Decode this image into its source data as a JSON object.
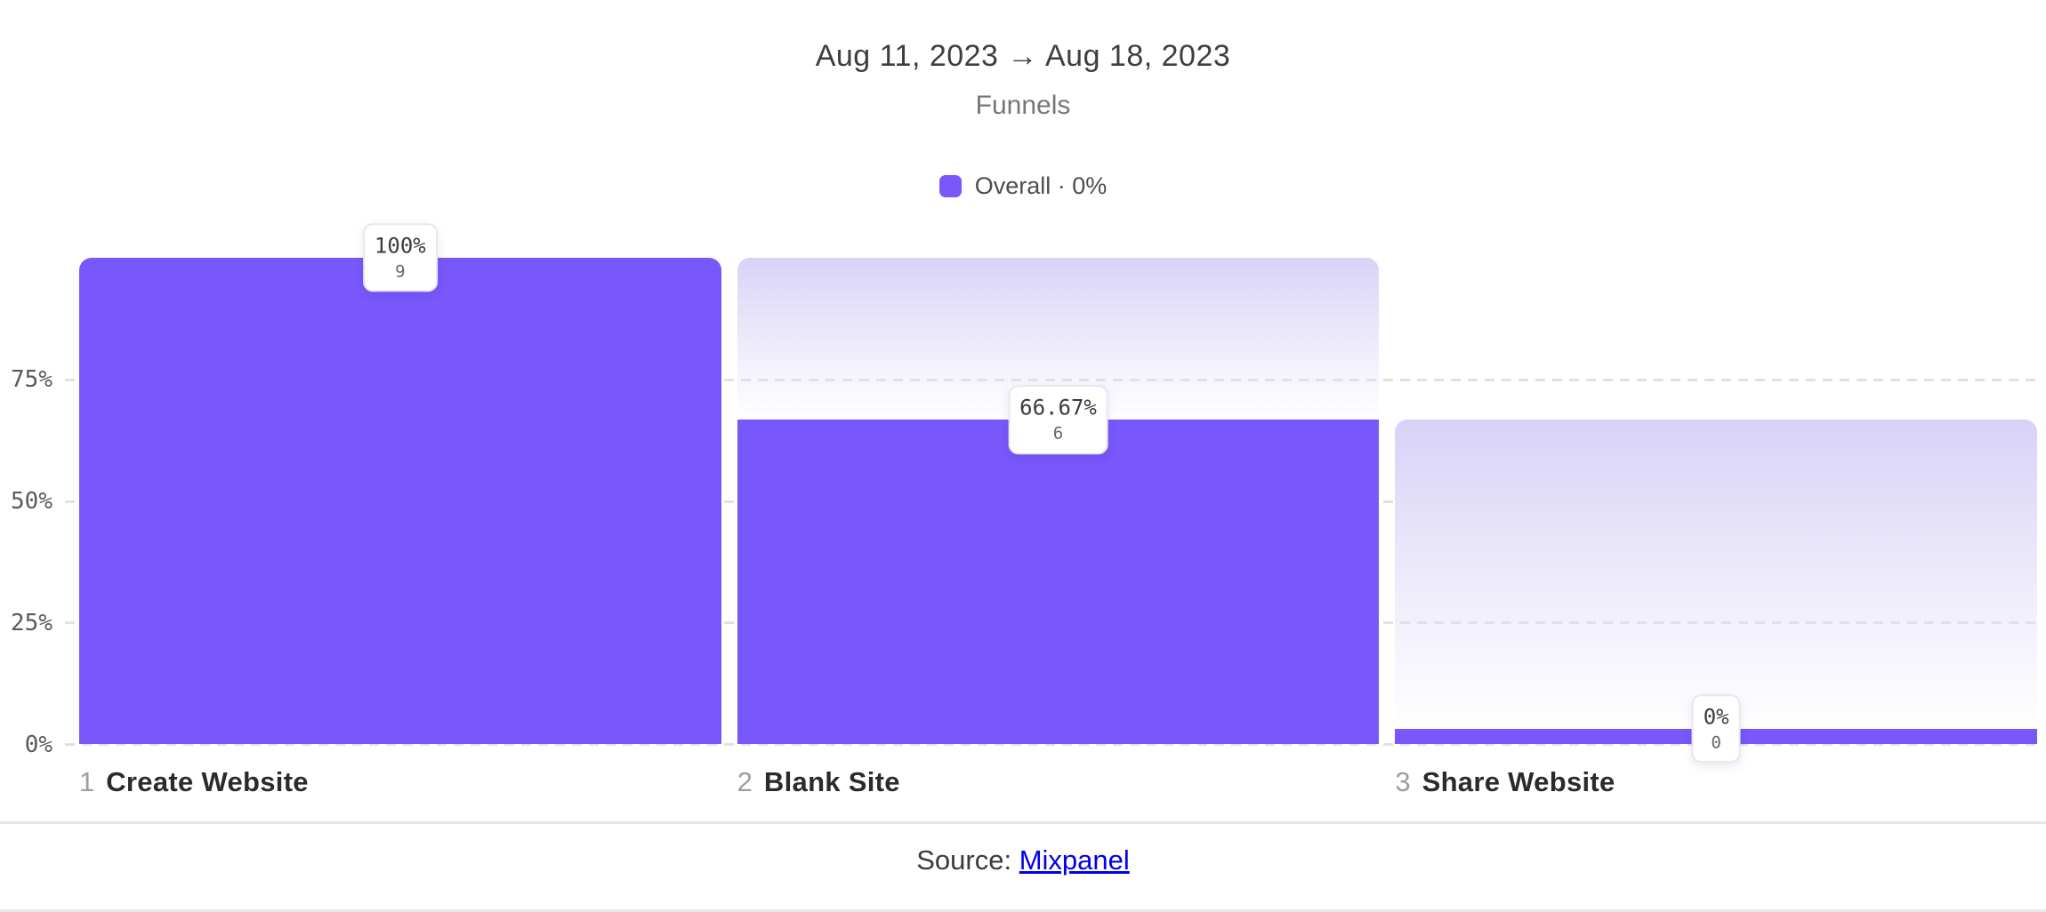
{
  "header": {
    "date_range": "Aug 11, 2023 → Aug 18, 2023",
    "report_type": "Funnels"
  },
  "legend": {
    "label": "Overall · 0%"
  },
  "y_axis": {
    "ticks": [
      {
        "label": "75%"
      },
      {
        "label": "50%"
      },
      {
        "label": "25%"
      },
      {
        "label": "0%"
      }
    ]
  },
  "chart_data": {
    "type": "bar",
    "subtype": "funnel",
    "title": "Aug 11, 2023 → Aug 18, 2023",
    "subtitle": "Funnels",
    "legend_entries": [
      "Overall · 0%"
    ],
    "ylabel": "",
    "xlabel": "",
    "ylim": [
      0,
      100
    ],
    "y_tick_labels": [
      "0%",
      "25%",
      "50%",
      "75%"
    ],
    "grid": "dashed-horizontal",
    "legend_position": "top-center",
    "steps": [
      {
        "index": "1",
        "label": "Create Website",
        "percent": "100%",
        "count": "9",
        "value_pct": 100,
        "prev_pct": 100
      },
      {
        "index": "2",
        "label": "Blank Site",
        "percent": "66.67%",
        "count": "6",
        "value_pct": 66.67,
        "prev_pct": 100
      },
      {
        "index": "3",
        "label": "Share Website",
        "percent": "0%",
        "count": "0",
        "value_pct": 0,
        "prev_pct": 66.67
      }
    ]
  },
  "footer": {
    "source_label": "Source:",
    "link_text": "Mixpanel"
  },
  "colors": {
    "accent": "#7857FB",
    "ghost_top": "#D8D2F8",
    "grid": "#E1E1E1",
    "link": "#0000EE"
  }
}
